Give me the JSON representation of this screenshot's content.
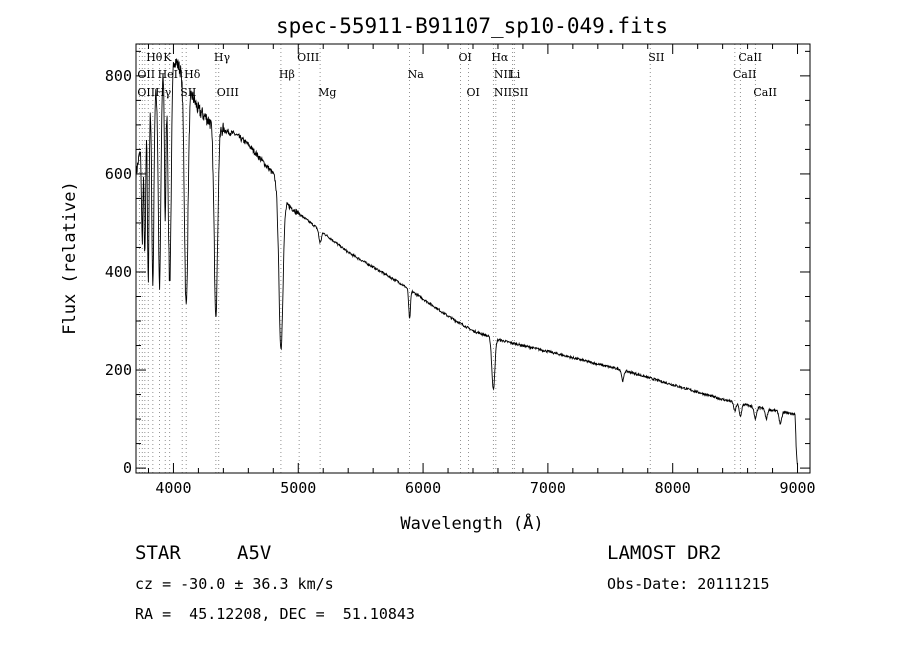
{
  "chart_data": {
    "type": "line",
    "title": "spec-55911-B91107_sp10-049.fits",
    "xlabel": "Wavelength (Å)",
    "ylabel": "Flux (relative)",
    "xlim": [
      3700,
      9100
    ],
    "ylim": [
      -10,
      865
    ],
    "x_ticks": [
      {
        "value": 4000,
        "label": "4000"
      },
      {
        "value": 5000,
        "label": "5000"
      },
      {
        "value": 6000,
        "label": "6000"
      },
      {
        "value": 7000,
        "label": "7000"
      },
      {
        "value": 8000,
        "label": "8000"
      },
      {
        "value": 9000,
        "label": "9000"
      }
    ],
    "y_ticks": [
      {
        "value": 0,
        "label": "0"
      },
      {
        "value": 200,
        "label": "200"
      },
      {
        "value": 400,
        "label": "400"
      },
      {
        "value": 600,
        "label": "600"
      },
      {
        "value": 800,
        "label": "800"
      }
    ],
    "continuum": {
      "x": [
        3700,
        3760,
        3820,
        3900,
        4000,
        4100,
        4200,
        4300,
        4400,
        4500,
        4600,
        4700,
        4800,
        4900,
        5000,
        5200,
        5400,
        5600,
        5800,
        6000,
        6200,
        6400,
        6600,
        6800,
        7000,
        7200,
        7400,
        7600,
        7800,
        8000,
        8200,
        8400,
        8600,
        8800,
        8980,
        8990,
        9000
      ],
      "y": [
        600,
        680,
        740,
        800,
        840,
        790,
        730,
        705,
        690,
        680,
        660,
        630,
        600,
        540,
        520,
        480,
        440,
        410,
        380,
        345,
        310,
        280,
        262,
        250,
        238,
        225,
        212,
        200,
        185,
        170,
        155,
        140,
        128,
        118,
        110,
        40,
        0
      ]
    },
    "absorption_lines": [
      {
        "center": 3750,
        "depth": 200,
        "width": 6
      },
      {
        "center": 3771,
        "depth": 260,
        "width": 6
      },
      {
        "center": 3798,
        "depth": 340,
        "width": 6
      },
      {
        "center": 3835,
        "depth": 380,
        "width": 8
      },
      {
        "center": 3889,
        "depth": 420,
        "width": 10
      },
      {
        "center": 3934,
        "depth": 300,
        "width": 6
      },
      {
        "center": 3970,
        "depth": 450,
        "width": 12
      },
      {
        "center": 4102,
        "depth": 460,
        "width": 14
      },
      {
        "center": 4340,
        "depth": 380,
        "width": 14
      },
      {
        "center": 4861,
        "depth": 320,
        "width": 16
      },
      {
        "center": 5175,
        "depth": 25,
        "width": 10
      },
      {
        "center": 5892,
        "depth": 60,
        "width": 7
      },
      {
        "center": 6563,
        "depth": 105,
        "width": 12
      },
      {
        "center": 7600,
        "depth": 22,
        "width": 9
      },
      {
        "center": 8498,
        "depth": 18,
        "width": 9
      },
      {
        "center": 8542,
        "depth": 25,
        "width": 10
      },
      {
        "center": 8662,
        "depth": 25,
        "width": 10
      },
      {
        "center": 8750,
        "depth": 20,
        "width": 9
      },
      {
        "center": 8863,
        "depth": 25,
        "width": 10
      }
    ],
    "noise_seed": 7,
    "line_markers": [
      {
        "label": "Hθ",
        "wavelength": 3798,
        "row": 1
      },
      {
        "label": "K",
        "wavelength": 3934,
        "row": 1
      },
      {
        "label": "OII",
        "wavelength": 3727,
        "row": 2
      },
      {
        "label": "HeI",
        "wavelength": 3889,
        "row": 2
      },
      {
        "label": "Hδ",
        "wavelength": 4102,
        "row": 2
      },
      {
        "label": "OIIHγ",
        "wavelength": 3727,
        "row": 3
      },
      {
        "label": "SII",
        "wavelength": 4070,
        "row": 3
      },
      {
        "label": "OIII",
        "wavelength": 4363,
        "row": 3
      },
      {
        "label": "Hγ",
        "wavelength": 4340,
        "row": 1
      },
      {
        "label": "OIII",
        "wavelength": 5007,
        "row": 1
      },
      {
        "label": "Hβ",
        "wavelength": 4861,
        "row": 2
      },
      {
        "label": "Mg",
        "wavelength": 5175,
        "row": 3
      },
      {
        "label": "Na",
        "wavelength": 5892,
        "row": 2
      },
      {
        "label": "OI",
        "wavelength": 6300,
        "row": 1
      },
      {
        "label": "OI",
        "wavelength": 6364,
        "row": 3
      },
      {
        "label": "Hα",
        "wavelength": 6563,
        "row": 1
      },
      {
        "label": "NII",
        "wavelength": 6583,
        "row": 2
      },
      {
        "label": "Li",
        "wavelength": 6708,
        "row": 2
      },
      {
        "label": "NIISII",
        "wavelength": 6583,
        "row": 3
      },
      {
        "label": "SII",
        "wavelength": 7820,
        "row": 1
      },
      {
        "label": "CaII",
        "wavelength": 8542,
        "row": 1
      },
      {
        "label": "CaII",
        "wavelength": 8498,
        "row": 2
      },
      {
        "label": "CaII",
        "wavelength": 8662,
        "row": 3
      }
    ],
    "marker_wavelengths": [
      3727,
      3750,
      3771,
      3798,
      3835,
      3889,
      3934,
      3970,
      4070,
      4102,
      4340,
      4363,
      4861,
      5007,
      5175,
      5892,
      6300,
      6364,
      6563,
      6583,
      6716,
      6731,
      7820,
      8498,
      8542,
      8662
    ]
  },
  "info": {
    "class_label": "STAR",
    "subclass_label": "A5V",
    "survey_label": "LAMOST DR2",
    "redshift_text": "cz = -30.0 ± 36.3 km/s",
    "obs_date_text": "Obs-Date: 20111215",
    "coords_text": "RA =  45.12208, DEC =  51.10843"
  }
}
